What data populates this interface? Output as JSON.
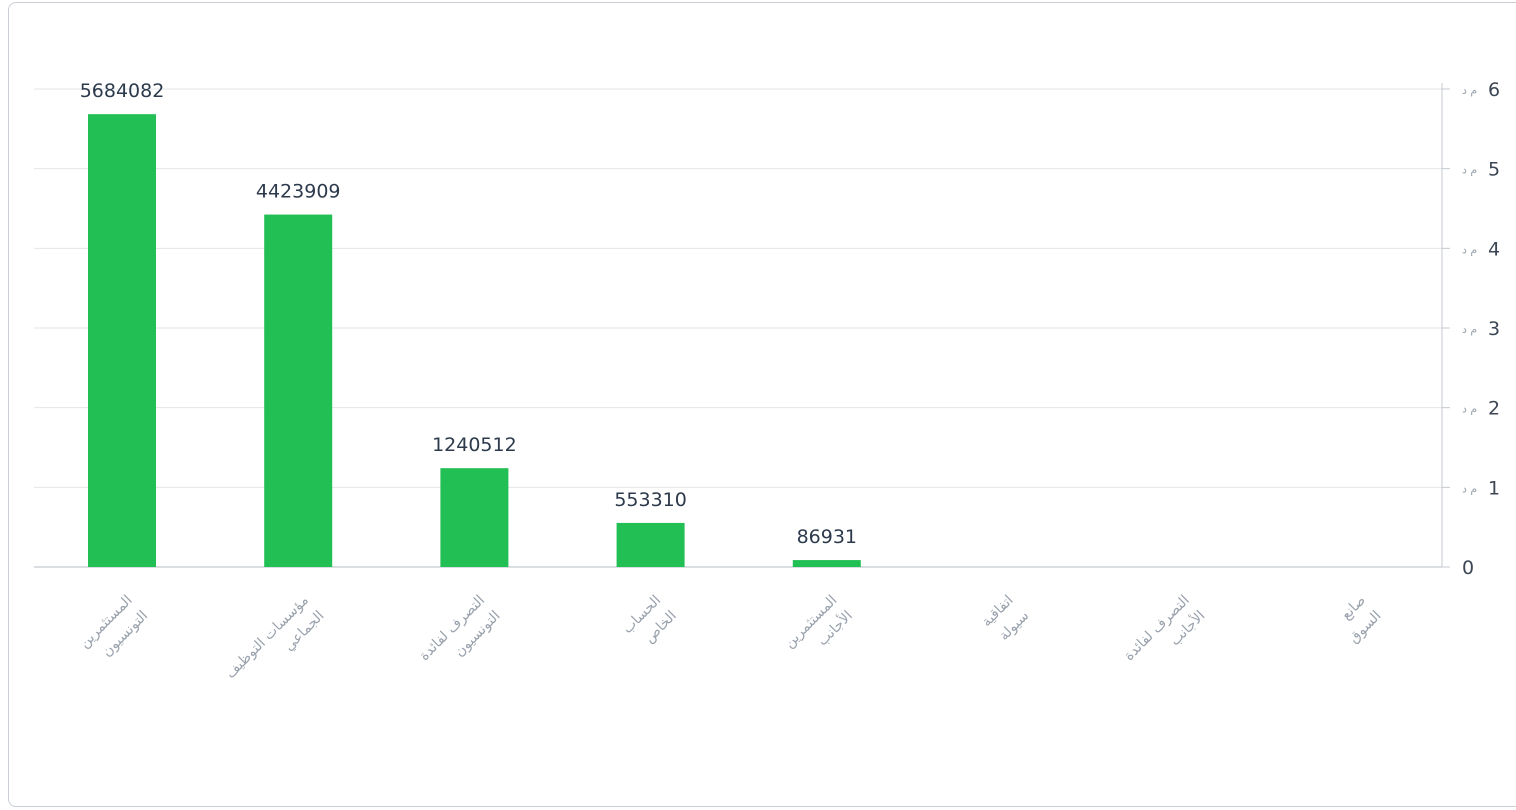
{
  "chart_data": {
    "type": "bar",
    "categories": [
      [
        "المستثمرين",
        "التونسيون"
      ],
      [
        "مؤسسات التوظيف",
        "الجماعي"
      ],
      [
        "التصرف لفائدة",
        "التونسيون"
      ],
      [
        "الحساب",
        "الخاص"
      ],
      [
        "المستثمرين",
        "الأجانب"
      ],
      [
        "اتفاقية",
        "سيولة"
      ],
      [
        "التصرف لفائدة",
        "الأجانب"
      ],
      [
        "صانع",
        "السوق"
      ]
    ],
    "values": [
      5684082,
      4423909,
      1240512,
      553310,
      86931,
      0,
      0,
      0
    ],
    "data_labels": [
      "5684082",
      "4423909",
      "1240512",
      "553310",
      "86931",
      "",
      "",
      ""
    ],
    "y_ticks": [
      {
        "value": 0,
        "label": "0",
        "unit": ""
      },
      {
        "value": 1000000,
        "label": "1",
        "unit": "م د"
      },
      {
        "value": 2000000,
        "label": "2",
        "unit": "م د"
      },
      {
        "value": 3000000,
        "label": "3",
        "unit": "م د"
      },
      {
        "value": 4000000,
        "label": "4",
        "unit": "م د"
      },
      {
        "value": 5000000,
        "label": "5",
        "unit": "م د"
      },
      {
        "value": 6000000,
        "label": "6",
        "unit": "م د"
      }
    ],
    "ylim": [
      0,
      6000000
    ],
    "y_axis_side": "right",
    "grid": true,
    "title": "",
    "xlabel": "",
    "ylabel": "",
    "colors": {
      "bar": "#22bf55",
      "grid": "#e3e6ea",
      "axis": "#c4c9cf"
    }
  }
}
